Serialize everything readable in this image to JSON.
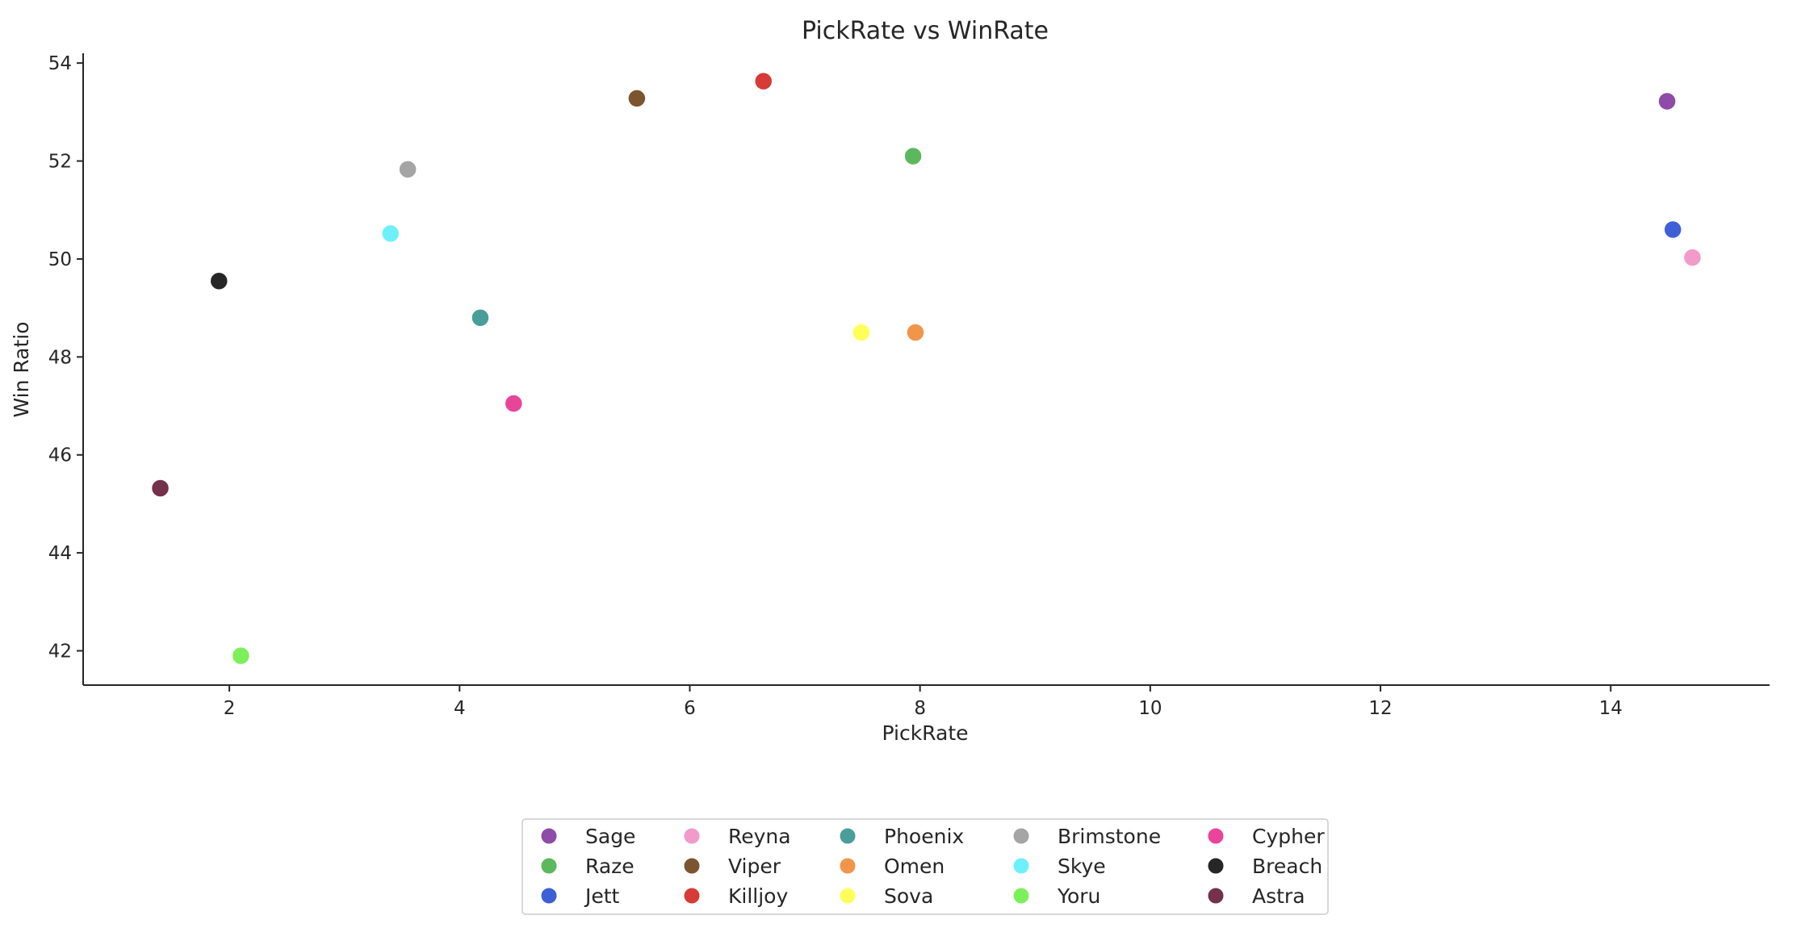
{
  "chart_data": {
    "type": "scatter",
    "title": "PickRate vs WinRate",
    "xlabel": "PickRate",
    "ylabel": "Win Ratio",
    "xlim": [
      0.73,
      15.38
    ],
    "ylim": [
      41.3,
      54.2
    ],
    "xticks": [
      2,
      4,
      6,
      8,
      10,
      12,
      14
    ],
    "yticks": [
      42,
      44,
      46,
      48,
      50,
      52,
      54
    ],
    "grid": false,
    "legend_position": "bottom-center",
    "series": [
      {
        "name": "Sage",
        "color": "#8e4ba8",
        "x": 14.49,
        "y": 53.22
      },
      {
        "name": "Raze",
        "color": "#5cb85c",
        "x": 7.94,
        "y": 52.1
      },
      {
        "name": "Jett",
        "color": "#3d60d6",
        "x": 14.54,
        "y": 50.6
      },
      {
        "name": "Reyna",
        "color": "#f29ac9",
        "x": 14.71,
        "y": 50.03
      },
      {
        "name": "Viper",
        "color": "#7b5530",
        "x": 5.54,
        "y": 53.28
      },
      {
        "name": "Killjoy",
        "color": "#d63b35",
        "x": 6.64,
        "y": 53.63
      },
      {
        "name": "Phoenix",
        "color": "#4a9e99",
        "x": 4.18,
        "y": 48.8
      },
      {
        "name": "Omen",
        "color": "#f0954a",
        "x": 7.96,
        "y": 48.5
      },
      {
        "name": "Sova",
        "color": "#ffff5a",
        "x": 7.49,
        "y": 48.5
      },
      {
        "name": "Brimstone",
        "color": "#a5a5a5",
        "x": 3.55,
        "y": 51.83
      },
      {
        "name": "Skye",
        "color": "#6ef0fb",
        "x": 3.4,
        "y": 50.52
      },
      {
        "name": "Yoru",
        "color": "#7cf05a",
        "x": 2.1,
        "y": 41.9
      },
      {
        "name": "Cypher",
        "color": "#e8449a",
        "x": 4.47,
        "y": 47.05
      },
      {
        "name": "Breach",
        "color": "#262626",
        "x": 1.91,
        "y": 49.55
      },
      {
        "name": "Astra",
        "color": "#75304a",
        "x": 1.4,
        "y": 45.32
      }
    ]
  }
}
